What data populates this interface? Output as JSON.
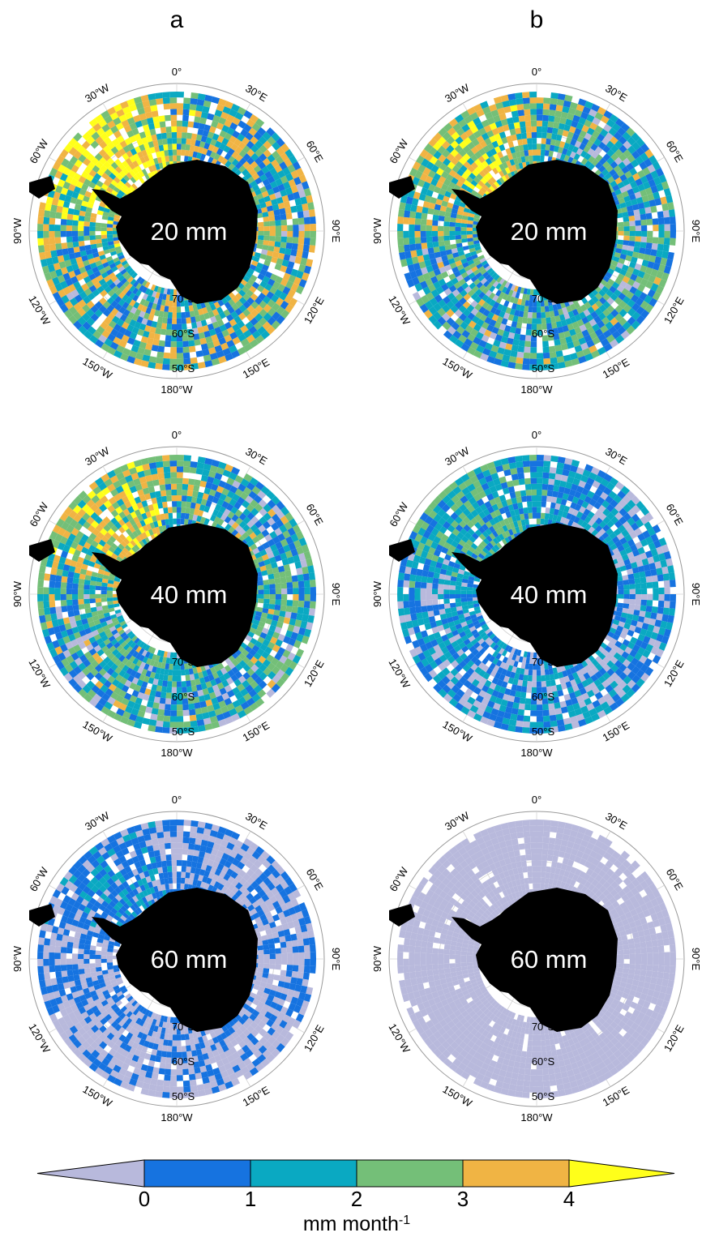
{
  "columns": [
    "a",
    "b"
  ],
  "rows": [
    {
      "label": "20 mm",
      "coverage": {
        "a": 0.95,
        "b": 0.8
      }
    },
    {
      "label": "40 mm",
      "coverage": {
        "a": 0.8,
        "b": 0.55
      }
    },
    {
      "label": "60 mm",
      "coverage": {
        "a": 0.35,
        "b": 0.06
      }
    }
  ],
  "longitude_labels": [
    {
      "text": "0°",
      "deg": 0
    },
    {
      "text": "30°E",
      "deg": 30
    },
    {
      "text": "60°E",
      "deg": 60
    },
    {
      "text": "90°E",
      "deg": 90
    },
    {
      "text": "120°E",
      "deg": 120
    },
    {
      "text": "150°E",
      "deg": 150
    },
    {
      "text": "180°W",
      "deg": 180
    },
    {
      "text": "150°W",
      "deg": 210
    },
    {
      "text": "120°W",
      "deg": 240
    },
    {
      "text": "90°W",
      "deg": 270
    },
    {
      "text": "60°W",
      "deg": 300
    },
    {
      "text": "30°W",
      "deg": 330
    }
  ],
  "latitude_labels": [
    "70°S",
    "60°S",
    "50°S"
  ],
  "colorbar": {
    "unit": "mm month-1",
    "ticks": [
      "0",
      "1",
      "2",
      "3",
      "4"
    ],
    "bins": [
      {
        "range": "<0",
        "color": "#b8b9dc"
      },
      {
        "range": "0-1",
        "color": "#1673e0"
      },
      {
        "range": "1-2",
        "color": "#0aa9c2"
      },
      {
        "range": "2-3",
        "color": "#74bf78"
      },
      {
        "range": "3-4",
        "color": "#f0b444"
      },
      {
        "range": ">4",
        "color": "#ffff1a"
      }
    ]
  },
  "colors": {
    "land": "#000000",
    "grid": "#9a9a9a"
  }
}
